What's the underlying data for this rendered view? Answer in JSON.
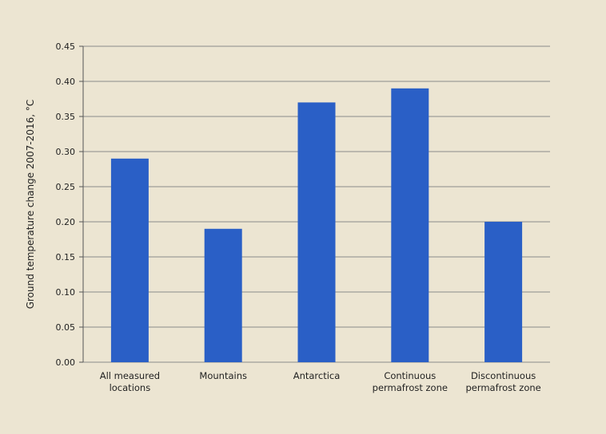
{
  "chart_data": {
    "type": "bar",
    "categories": [
      [
        "All measured",
        "locations"
      ],
      [
        "Mountains"
      ],
      [
        "Antarctica"
      ],
      [
        "Continuous",
        "permafrost zone"
      ],
      [
        "Discontinuous",
        "permafrost zone"
      ]
    ],
    "values": [
      0.29,
      0.19,
      0.37,
      0.39,
      0.2
    ],
    "ylabel": "Ground temperature change 2007-2016, °C",
    "ylim": [
      0,
      0.45
    ],
    "yticks": [
      "0.00",
      "0.05",
      "0.10",
      "0.15",
      "0.20",
      "0.25",
      "0.30",
      "0.35",
      "0.40",
      "0.45"
    ],
    "grid": true,
    "bar_color": "#2a5fc6",
    "grid_color": "#8a8a8a"
  }
}
